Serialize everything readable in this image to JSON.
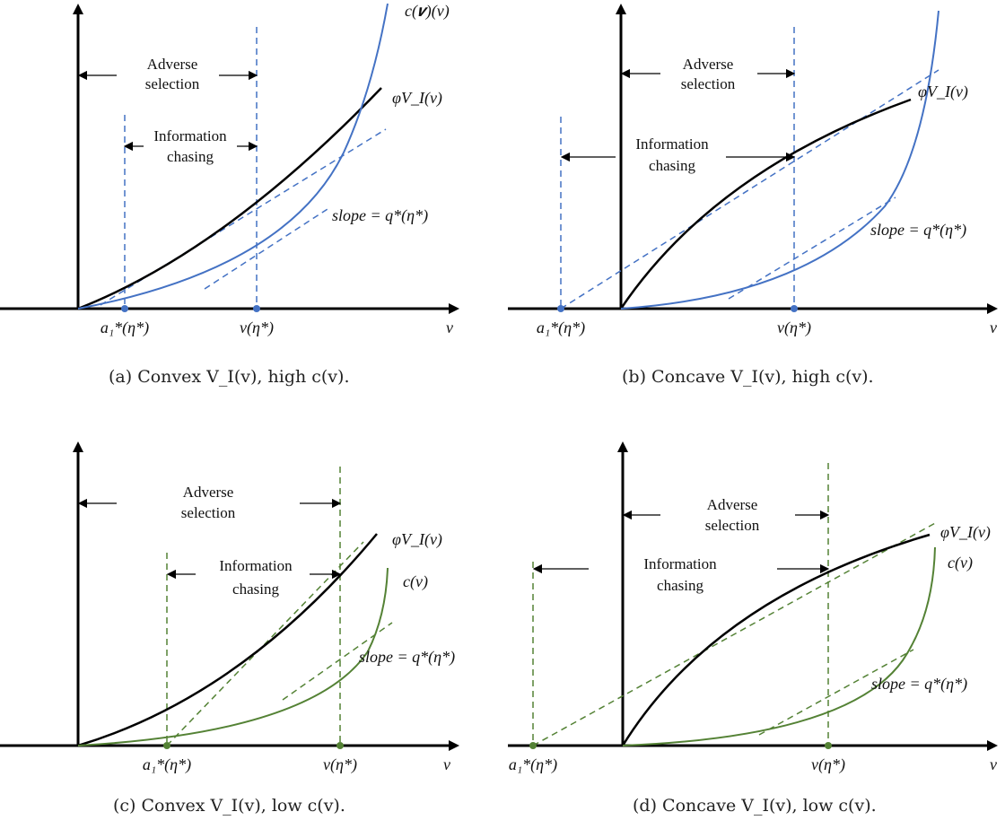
{
  "colors": {
    "blue": "#4472C4",
    "green": "#548235",
    "black": "#000000"
  },
  "panels": [
    {
      "id": "a",
      "caption": "(a) Convex V_I(v), high c(v).",
      "labels": {
        "adverse": "Adverse selection",
        "info": "Information chasing",
        "phiV": "φV_I(v)",
        "cv": "c(𝒗)(v)",
        "slope": "slope = q*(η*)",
        "a1": "a₁*(η*)",
        "vstar": "v(η*)",
        "v": "v"
      }
    },
    {
      "id": "b",
      "caption": "(b) Concave V_I(v), high c(v).",
      "labels": {
        "adverse": "Adverse selection",
        "info": "Information chasing",
        "phiV": "φV_I(v)",
        "slope": "slope = q*(η*)",
        "a1": "a₁*(η*)",
        "vstar": "v(η*)",
        "v": "v"
      }
    },
    {
      "id": "c",
      "caption": "(c) Convex V_I(v), low c(v).",
      "labels": {
        "adverse": "Adverse selection",
        "info": "Information chasing",
        "phiV": "φV_I(v)",
        "cv": "c(v)",
        "slope": "slope = q*(η*)",
        "a1": "a₁*(η*)",
        "vstar": "v(η*)",
        "v": "v"
      }
    },
    {
      "id": "d",
      "caption": "(d) Concave V_I(v), low c(v).",
      "labels": {
        "adverse": "Adverse selection",
        "info": "Information chasing",
        "phiV": "φV_I(v)",
        "cv": "c(v)",
        "slope": "slope = q*(η*)",
        "a1": "a₁*(η*)",
        "vstar": "v(η*)",
        "v": "v"
      }
    }
  ]
}
